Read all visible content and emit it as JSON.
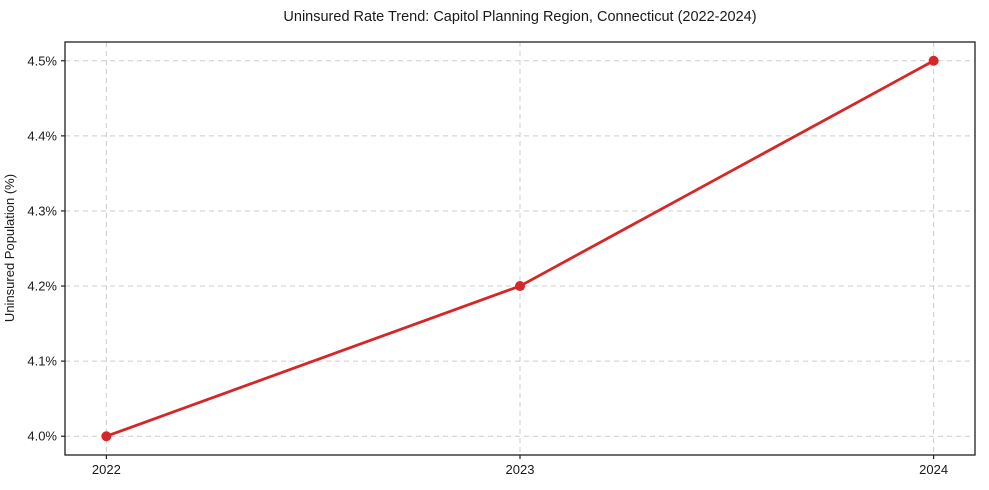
{
  "chart_data": {
    "type": "line",
    "title": "Uninsured Rate Trend: Capitol Planning Region, Connecticut (2022-2024)",
    "ylabel": "Uninsured Population (%)",
    "xlabel": "",
    "x": [
      2022,
      2023,
      2024
    ],
    "values": [
      4.0,
      4.2,
      4.5
    ],
    "x_ticks": [
      2022,
      2023,
      2024
    ],
    "x_tick_labels": [
      "2022",
      "2023",
      "2024"
    ],
    "y_ticks": [
      4.0,
      4.1,
      4.2,
      4.3,
      4.4,
      4.5
    ],
    "y_tick_labels": [
      "4.0%",
      "4.1%",
      "4.2%",
      "4.3%",
      "4.4%",
      "4.5%"
    ],
    "xlim": [
      2021.9,
      2024.1
    ],
    "ylim": [
      3.975,
      4.525
    ],
    "grid": true,
    "grid_style": "dashed",
    "legend_position": "none",
    "colors": {
      "line": "#d62728",
      "marker": "#d62728",
      "grid": "#cccccc",
      "frame": "#1f1f1f",
      "text": "#1a1a1a",
      "background": "#ffffff"
    }
  }
}
